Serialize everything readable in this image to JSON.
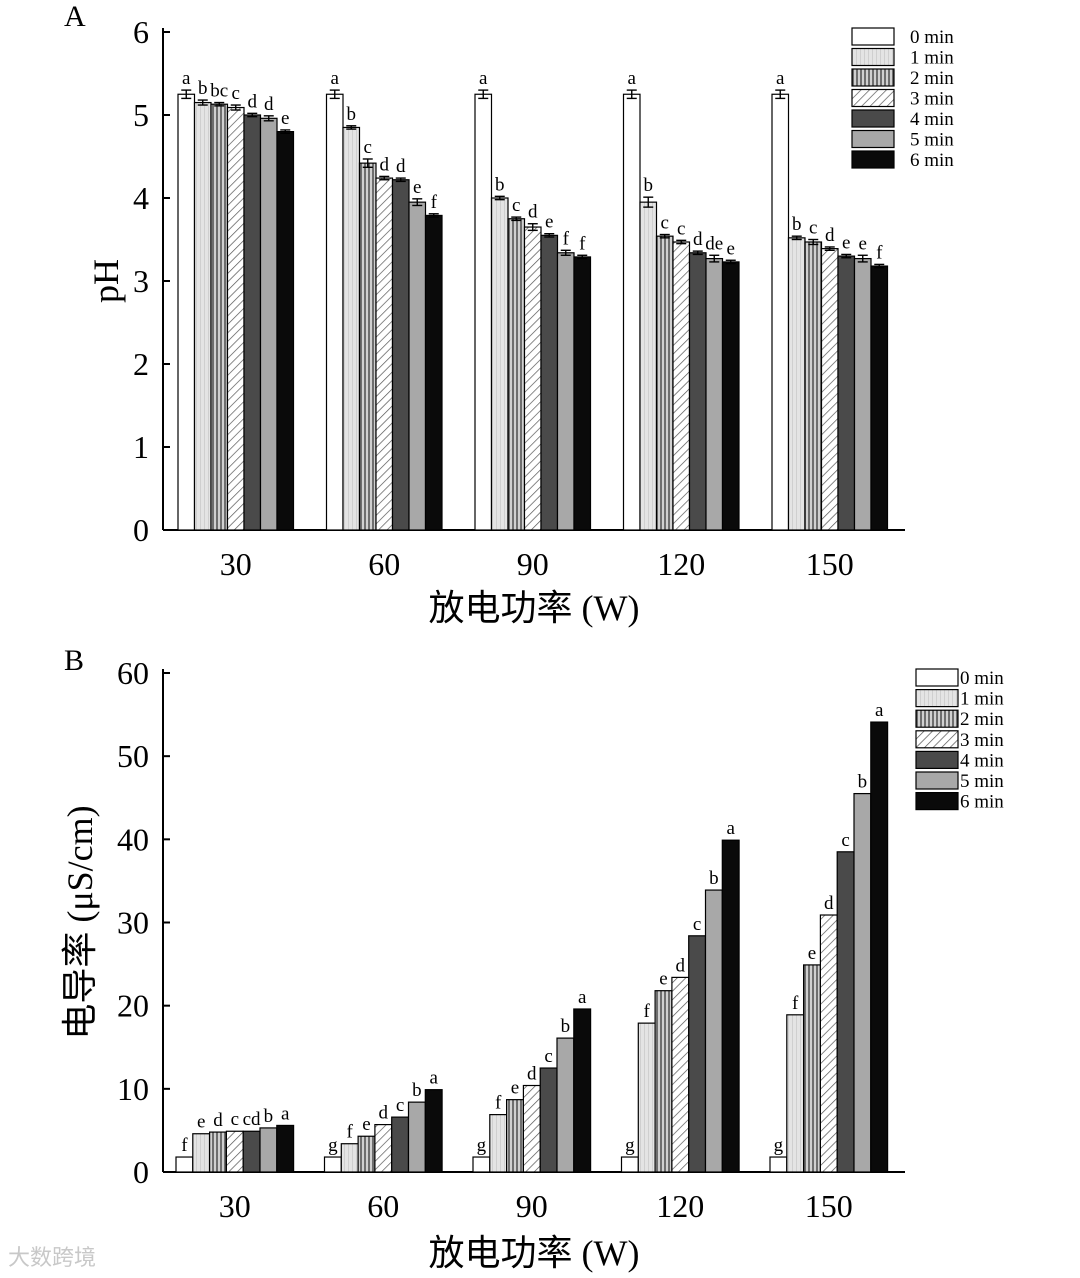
{
  "chart_data": [
    {
      "type": "bar",
      "panel": "A",
      "title": "",
      "xlabel": "放电功率 (W)",
      "ylabel": "pH",
      "ylim": [
        0,
        6
      ],
      "yticks": [
        0,
        1,
        2,
        3,
        4,
        5,
        6
      ],
      "categories": [
        "30",
        "60",
        "90",
        "120",
        "150"
      ],
      "series": [
        {
          "name": "0 min",
          "values": [
            5.25,
            5.25,
            5.25,
            5.25,
            5.25
          ],
          "errors": [
            0.05,
            0.05,
            0.05,
            0.05,
            0.05
          ],
          "labels": [
            "a",
            "a",
            "a",
            "a",
            "a"
          ]
        },
        {
          "name": "1 min",
          "values": [
            5.15,
            4.85,
            4.0,
            3.95,
            3.52
          ],
          "errors": [
            0.03,
            0.02,
            0.02,
            0.06,
            0.02
          ],
          "labels": [
            "b",
            "b",
            "b",
            "b",
            "b"
          ]
        },
        {
          "name": "2 min",
          "values": [
            5.13,
            4.42,
            3.75,
            3.54,
            3.47
          ],
          "errors": [
            0.02,
            0.05,
            0.02,
            0.02,
            0.03
          ],
          "labels": [
            "bc",
            "c",
            "c",
            "c",
            "c"
          ]
        },
        {
          "name": "3 min",
          "values": [
            5.09,
            4.24,
            3.65,
            3.47,
            3.39
          ],
          "errors": [
            0.03,
            0.02,
            0.04,
            0.02,
            0.02
          ],
          "labels": [
            "c",
            "d",
            "d",
            "c",
            "d"
          ]
        },
        {
          "name": "4 min",
          "values": [
            5.0,
            4.22,
            3.55,
            3.34,
            3.3
          ],
          "errors": [
            0.02,
            0.02,
            0.02,
            0.02,
            0.02
          ],
          "labels": [
            "d",
            "d",
            "e",
            "d",
            "e"
          ]
        },
        {
          "name": "5 min",
          "values": [
            4.96,
            3.95,
            3.34,
            3.27,
            3.27
          ],
          "errors": [
            0.03,
            0.04,
            0.03,
            0.04,
            0.04
          ],
          "labels": [
            "d",
            "e",
            "f",
            "de",
            "e"
          ]
        },
        {
          "name": "6 min",
          "values": [
            4.8,
            3.79,
            3.29,
            3.23,
            3.18
          ],
          "errors": [
            0.02,
            0.02,
            0.02,
            0.02,
            0.02
          ],
          "labels": [
            "e",
            "f",
            "f",
            "e",
            "f"
          ]
        }
      ],
      "legend": "top-right"
    },
    {
      "type": "bar",
      "panel": "B",
      "title": "",
      "xlabel": "放电功率 (W)",
      "ylabel": "电导率 (μS/cm)",
      "ylim": [
        0,
        60
      ],
      "yticks": [
        0,
        10,
        20,
        30,
        40,
        50,
        60
      ],
      "categories": [
        "30",
        "60",
        "90",
        "120",
        "150"
      ],
      "series": [
        {
          "name": "0 min",
          "values": [
            1.8,
            1.8,
            1.8,
            1.8,
            1.8
          ],
          "errors": [
            0,
            0,
            0,
            0,
            0
          ],
          "labels": [
            "f",
            "g",
            "g",
            "g",
            "g"
          ]
        },
        {
          "name": "1 min",
          "values": [
            4.6,
            3.4,
            6.9,
            17.9,
            18.9
          ],
          "errors": [
            0,
            0,
            0,
            0,
            0
          ],
          "labels": [
            "e",
            "f",
            "f",
            "f",
            "f"
          ]
        },
        {
          "name": "2 min",
          "values": [
            4.8,
            4.3,
            8.7,
            21.8,
            24.9
          ],
          "errors": [
            0,
            0,
            0,
            0,
            0
          ],
          "labels": [
            "d",
            "e",
            "e",
            "e",
            "e"
          ]
        },
        {
          "name": "3 min",
          "values": [
            4.9,
            5.7,
            10.4,
            23.4,
            30.9
          ],
          "errors": [
            0,
            0,
            0,
            0,
            0
          ],
          "labels": [
            "c",
            "d",
            "d",
            "d",
            "d"
          ]
        },
        {
          "name": "4 min",
          "values": [
            4.9,
            6.6,
            12.5,
            28.4,
            38.5
          ],
          "errors": [
            0,
            0,
            0,
            0,
            0
          ],
          "labels": [
            "cd",
            "c",
            "c",
            "c",
            "c"
          ]
        },
        {
          "name": "5 min",
          "values": [
            5.3,
            8.4,
            16.1,
            33.9,
            45.5
          ],
          "errors": [
            0,
            0,
            0,
            0,
            0
          ],
          "labels": [
            "b",
            "b",
            "b",
            "b",
            "b"
          ]
        },
        {
          "name": "6 min",
          "values": [
            5.6,
            9.9,
            19.6,
            39.9,
            54.1
          ],
          "errors": [
            0,
            0,
            0,
            0,
            0
          ],
          "labels": [
            "a",
            "a",
            "a",
            "a",
            "a"
          ]
        }
      ],
      "legend": "top-right"
    }
  ],
  "watermark": "大数跨境"
}
